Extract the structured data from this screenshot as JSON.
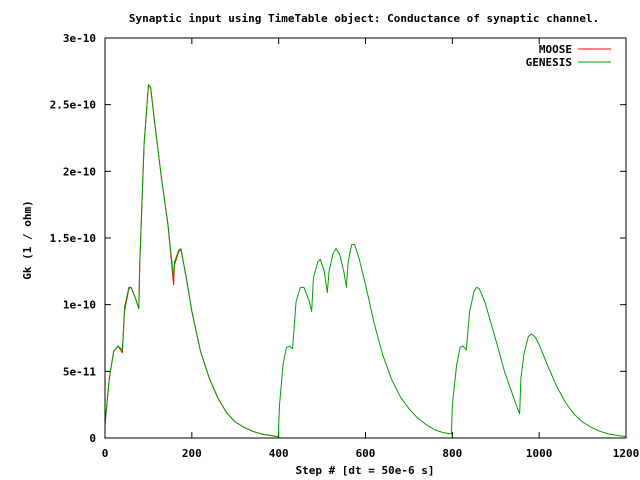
{
  "chart_data": {
    "type": "line",
    "title": "Synaptic input using TimeTable object: Conductance of synaptic channel.",
    "xlabel": "Step # [dt = 50e-6 s]",
    "ylabel": "Gk (1 / ohm)",
    "xlim": [
      0,
      1200
    ],
    "ylim": [
      0,
      3e-10
    ],
    "xticks": [
      0,
      200,
      400,
      600,
      800,
      1000,
      1200
    ],
    "xtick_labels": [
      "0",
      "200",
      "400",
      "600",
      "800",
      "1000",
      "1200"
    ],
    "yticks": [
      0,
      5e-11,
      1e-10,
      1.5e-10,
      2e-10,
      2.5e-10,
      3e-10
    ],
    "ytick_labels": [
      "0",
      "5e-11",
      "1e-10",
      "1.5e-10",
      "2e-10",
      "2.5e-10",
      "3e-10"
    ],
    "grid": false,
    "legend_position": "top-right",
    "series": [
      {
        "name": "MOOSE",
        "color": "#ff0000",
        "points": [
          [
            0,
            1e-11
          ],
          [
            10,
            4.5e-11
          ],
          [
            20,
            6.5e-11
          ],
          [
            30,
            6.9e-11
          ],
          [
            40,
            6.4e-11
          ],
          [
            45,
            9.5e-11
          ],
          [
            55,
            1.12e-10
          ],
          [
            60,
            1.13e-10
          ],
          [
            70,
            1.05e-10
          ],
          [
            78,
            9.7e-11
          ],
          [
            80,
            1.3e-10
          ],
          [
            90,
            2.2e-10
          ],
          [
            100,
            2.64e-10
          ],
          [
            105,
            2.63e-10
          ],
          [
            115,
            2.35e-10
          ],
          [
            130,
            1.95e-10
          ],
          [
            145,
            1.6e-10
          ],
          [
            158,
            1.15e-10
          ],
          [
            160,
            1.3e-10
          ],
          [
            170,
            1.4e-10
          ],
          [
            175,
            1.41e-10
          ],
          [
            180,
            1.33e-10
          ],
          [
            190,
            1.15e-10
          ],
          [
            200,
            9.5e-11
          ],
          [
            220,
            6.5e-11
          ],
          [
            240,
            4.5e-11
          ],
          [
            260,
            3e-11
          ],
          [
            280,
            1.9e-11
          ],
          [
            300,
            1.2e-11
          ],
          [
            320,
            8e-12
          ],
          [
            340,
            5e-12
          ],
          [
            360,
            3e-12
          ],
          [
            380,
            2e-12
          ],
          [
            398,
            1e-12
          ]
        ]
      },
      {
        "name": "GENESIS",
        "color": "#00a000",
        "points": [
          [
            0,
            1e-11
          ],
          [
            10,
            4.5e-11
          ],
          [
            20,
            6.5e-11
          ],
          [
            30,
            6.9e-11
          ],
          [
            40,
            6.6e-11
          ],
          [
            45,
            9.8e-11
          ],
          [
            55,
            1.13e-10
          ],
          [
            60,
            1.13e-10
          ],
          [
            70,
            1.05e-10
          ],
          [
            78,
            9.7e-11
          ],
          [
            80,
            1.3e-10
          ],
          [
            90,
            2.2e-10
          ],
          [
            100,
            2.65e-10
          ],
          [
            105,
            2.63e-10
          ],
          [
            115,
            2.35e-10
          ],
          [
            130,
            1.95e-10
          ],
          [
            145,
            1.6e-10
          ],
          [
            158,
            1.2e-10
          ],
          [
            160,
            1.32e-10
          ],
          [
            170,
            1.41e-10
          ],
          [
            175,
            1.42e-10
          ],
          [
            180,
            1.33e-10
          ],
          [
            190,
            1.15e-10
          ],
          [
            200,
            9.5e-11
          ],
          [
            220,
            6.5e-11
          ],
          [
            240,
            4.5e-11
          ],
          [
            260,
            3e-11
          ],
          [
            280,
            1.9e-11
          ],
          [
            300,
            1.2e-11
          ],
          [
            320,
            8e-12
          ],
          [
            340,
            5e-12
          ],
          [
            360,
            3e-12
          ],
          [
            380,
            2e-12
          ],
          [
            399,
            1e-12
          ],
          [
            402,
            2.5e-11
          ],
          [
            410,
            5.5e-11
          ],
          [
            418,
            6.8e-11
          ],
          [
            425,
            6.9e-11
          ],
          [
            432,
            6.7e-11
          ],
          [
            440,
            1.02e-10
          ],
          [
            450,
            1.13e-10
          ],
          [
            458,
            1.13e-10
          ],
          [
            470,
            1.03e-10
          ],
          [
            476,
            9.5e-11
          ],
          [
            480,
            1.2e-10
          ],
          [
            490,
            1.32e-10
          ],
          [
            496,
            1.34e-10
          ],
          [
            505,
            1.25e-10
          ],
          [
            512,
            1.09e-10
          ],
          [
            516,
            1.25e-10
          ],
          [
            525,
            1.38e-10
          ],
          [
            532,
            1.42e-10
          ],
          [
            540,
            1.38e-10
          ],
          [
            550,
            1.25e-10
          ],
          [
            556,
            1.13e-10
          ],
          [
            560,
            1.32e-10
          ],
          [
            568,
            1.45e-10
          ],
          [
            575,
            1.45e-10
          ],
          [
            585,
            1.35e-10
          ],
          [
            600,
            1.15e-10
          ],
          [
            620,
            8.6e-11
          ],
          [
            640,
            6.2e-11
          ],
          [
            660,
            4.4e-11
          ],
          [
            680,
            3.1e-11
          ],
          [
            700,
            2.2e-11
          ],
          [
            720,
            1.5e-11
          ],
          [
            740,
            1e-11
          ],
          [
            760,
            6e-12
          ],
          [
            780,
            4e-12
          ],
          [
            798,
            3e-12
          ],
          [
            800,
            2.5e-11
          ],
          [
            810,
            5.5e-11
          ],
          [
            818,
            6.8e-11
          ],
          [
            825,
            6.9e-11
          ],
          [
            832,
            6.6e-11
          ],
          [
            840,
            9.5e-11
          ],
          [
            850,
            1.1e-10
          ],
          [
            856,
            1.13e-10
          ],
          [
            862,
            1.12e-10
          ],
          [
            875,
            1.02e-10
          ],
          [
            890,
            8.5e-11
          ],
          [
            905,
            6.8e-11
          ],
          [
            920,
            5e-11
          ],
          [
            935,
            3.6e-11
          ],
          [
            948,
            2.4e-11
          ],
          [
            955,
            1.8e-11
          ],
          [
            958,
            4.5e-11
          ],
          [
            965,
            6.3e-11
          ],
          [
            975,
            7.6e-11
          ],
          [
            982,
            7.8e-11
          ],
          [
            990,
            7.6e-11
          ],
          [
            1000,
            7e-11
          ],
          [
            1020,
            5.4e-11
          ],
          [
            1040,
            3.9e-11
          ],
          [
            1060,
            2.7e-11
          ],
          [
            1080,
            1.8e-11
          ],
          [
            1100,
            1.2e-11
          ],
          [
            1120,
            8e-12
          ],
          [
            1140,
            5e-12
          ],
          [
            1160,
            3e-12
          ],
          [
            1180,
            2e-12
          ],
          [
            1200,
            1e-12
          ]
        ]
      }
    ]
  }
}
